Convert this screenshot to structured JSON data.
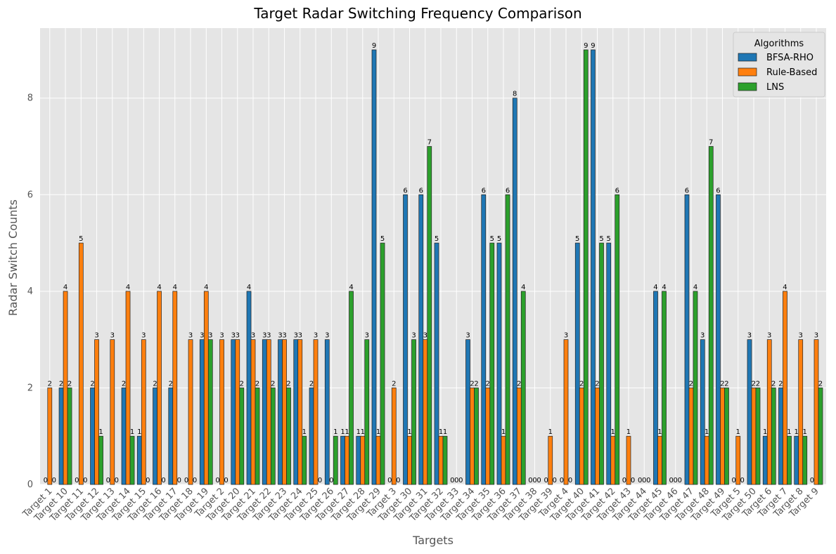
{
  "chart_data": {
    "type": "bar",
    "title": "Target Radar Switching Frequency Comparison",
    "xlabel": "Targets",
    "ylabel": "Radar Switch Counts",
    "ylim": [
      0,
      9.45
    ],
    "yticks": [
      0,
      2,
      4,
      6,
      8
    ],
    "grid": true,
    "legend": {
      "title": "Algorithms",
      "position": "top-right"
    },
    "categories": [
      "Target 1",
      "Target 10",
      "Target 11",
      "Target 12",
      "Target 13",
      "Target 14",
      "Target 15",
      "Target 16",
      "Target 17",
      "Target 18",
      "Target 19",
      "Target 2",
      "Target 20",
      "Target 21",
      "Target 22",
      "Target 23",
      "Target 24",
      "Target 25",
      "Target 26",
      "Target 27",
      "Target 28",
      "Target 29",
      "Target 3",
      "Target 30",
      "Target 31",
      "Target 32",
      "Target 33",
      "Target 34",
      "Target 35",
      "Target 36",
      "Target 37",
      "Target 38",
      "Target 39",
      "Target 4",
      "Target 40",
      "Target 41",
      "Target 42",
      "Target 43",
      "Target 44",
      "Target 45",
      "Target 46",
      "Target 47",
      "Target 48",
      "Target 49",
      "Target 5",
      "Target 50",
      "Target 6",
      "Target 7",
      "Target 8",
      "Target 9"
    ],
    "series": [
      {
        "name": "BFSA-RHO",
        "color": "#1f77b4",
        "values": [
          0,
          2,
          0,
          2,
          0,
          2,
          1,
          2,
          2,
          0,
          3,
          0,
          3,
          4,
          3,
          3,
          3,
          2,
          3,
          1,
          1,
          9,
          0,
          6,
          6,
          5,
          0,
          3,
          6,
          5,
          8,
          0,
          0,
          0,
          5,
          9,
          5,
          0,
          0,
          4,
          0,
          6,
          3,
          6,
          0,
          3,
          1,
          2,
          1,
          0
        ]
      },
      {
        "name": "Rule-Based",
        "color": "#ff7f0e",
        "values": [
          2,
          4,
          5,
          3,
          3,
          4,
          3,
          4,
          4,
          3,
          4,
          3,
          3,
          3,
          3,
          3,
          3,
          3,
          0,
          1,
          1,
          1,
          2,
          1,
          3,
          1,
          0,
          2,
          2,
          1,
          2,
          0,
          1,
          3,
          2,
          2,
          1,
          1,
          0,
          1,
          0,
          2,
          1,
          2,
          1,
          2,
          3,
          4,
          3,
          3
        ]
      },
      {
        "name": "LNS",
        "color": "#2ca02c",
        "values": [
          0,
          2,
          0,
          1,
          0,
          1,
          0,
          0,
          0,
          0,
          3,
          0,
          2,
          2,
          2,
          2,
          1,
          0,
          1,
          4,
          3,
          5,
          0,
          3,
          7,
          1,
          0,
          2,
          5,
          6,
          4,
          0,
          0,
          0,
          9,
          5,
          6,
          0,
          0,
          4,
          0,
          4,
          7,
          2,
          0,
          2,
          2,
          1,
          1,
          2
        ]
      }
    ]
  }
}
